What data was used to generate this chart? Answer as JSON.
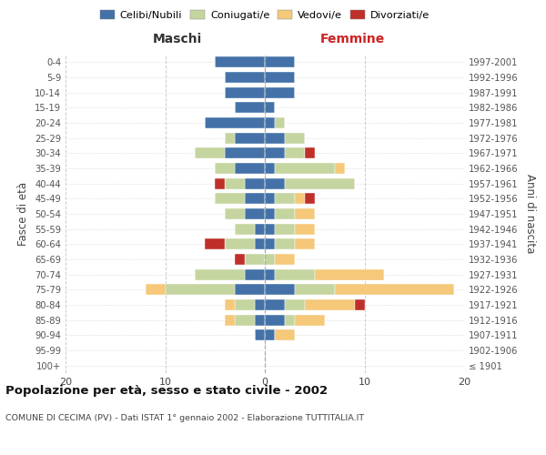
{
  "age_groups": [
    "100+",
    "95-99",
    "90-94",
    "85-89",
    "80-84",
    "75-79",
    "70-74",
    "65-69",
    "60-64",
    "55-59",
    "50-54",
    "45-49",
    "40-44",
    "35-39",
    "30-34",
    "25-29",
    "20-24",
    "15-19",
    "10-14",
    "5-9",
    "0-4"
  ],
  "birth_years": [
    "≤ 1901",
    "1902-1906",
    "1907-1911",
    "1912-1916",
    "1917-1921",
    "1922-1926",
    "1927-1931",
    "1932-1936",
    "1937-1941",
    "1942-1946",
    "1947-1951",
    "1952-1956",
    "1957-1961",
    "1962-1966",
    "1967-1971",
    "1972-1976",
    "1977-1981",
    "1982-1986",
    "1987-1991",
    "1992-1996",
    "1997-2001"
  ],
  "males": {
    "celibi": [
      0,
      0,
      1,
      1,
      1,
      3,
      2,
      0,
      1,
      1,
      2,
      2,
      2,
      3,
      4,
      3,
      6,
      3,
      4,
      4,
      5
    ],
    "coniugati": [
      0,
      0,
      0,
      2,
      2,
      7,
      5,
      2,
      3,
      2,
      2,
      3,
      2,
      2,
      3,
      1,
      0,
      0,
      0,
      0,
      0
    ],
    "vedovi": [
      0,
      0,
      0,
      1,
      1,
      2,
      0,
      0,
      0,
      0,
      0,
      0,
      0,
      0,
      0,
      0,
      0,
      0,
      0,
      0,
      0
    ],
    "divorziati": [
      0,
      0,
      0,
      0,
      0,
      0,
      0,
      1,
      2,
      0,
      0,
      0,
      1,
      0,
      0,
      0,
      0,
      0,
      0,
      0,
      0
    ]
  },
  "females": {
    "nubili": [
      0,
      0,
      1,
      2,
      2,
      3,
      1,
      0,
      1,
      1,
      1,
      1,
      2,
      1,
      2,
      2,
      1,
      1,
      3,
      3,
      3
    ],
    "coniugate": [
      0,
      0,
      0,
      1,
      2,
      4,
      4,
      1,
      2,
      2,
      2,
      2,
      7,
      6,
      2,
      2,
      1,
      0,
      0,
      0,
      0
    ],
    "vedove": [
      0,
      0,
      2,
      3,
      5,
      12,
      7,
      2,
      2,
      2,
      2,
      1,
      0,
      1,
      0,
      0,
      0,
      0,
      0,
      0,
      0
    ],
    "divorziate": [
      0,
      0,
      0,
      0,
      1,
      0,
      0,
      0,
      0,
      0,
      0,
      1,
      0,
      0,
      1,
      0,
      0,
      0,
      0,
      0,
      0
    ]
  },
  "colors": {
    "celibi": "#4472a8",
    "coniugati": "#c5d5a0",
    "vedovi": "#f5c87a",
    "divorziati": "#c0302a"
  },
  "xlim": 20,
  "title": "Popolazione per età, sesso e stato civile - 2002",
  "subtitle": "COMUNE DI CECIMA (PV) - Dati ISTAT 1° gennaio 2002 - Elaborazione TUTTITALIA.IT",
  "xlabel_left": "Maschi",
  "xlabel_right": "Femmine",
  "ylabel_left": "Fasce di età",
  "ylabel_right": "Anni di nascita",
  "legend_labels": [
    "Celibi/Nubili",
    "Coniugati/e",
    "Vedovi/e",
    "Divorziati/e"
  ],
  "bg_color": "#ffffff",
  "grid_color": "#cccccc"
}
